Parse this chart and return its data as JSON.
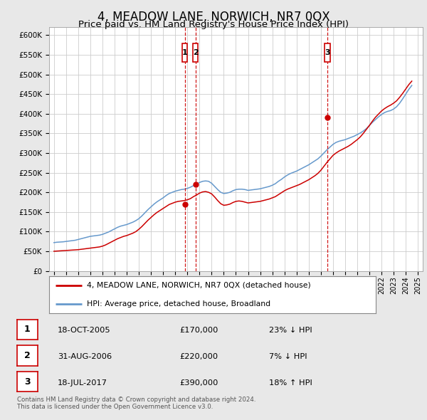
{
  "title": "4, MEADOW LANE, NORWICH, NR7 0QX",
  "subtitle": "Price paid vs. HM Land Registry's House Price Index (HPI)",
  "title_fontsize": 12,
  "subtitle_fontsize": 9.5,
  "ylim": [
    0,
    620000
  ],
  "yticks": [
    0,
    50000,
    100000,
    150000,
    200000,
    250000,
    300000,
    350000,
    400000,
    450000,
    500000,
    550000,
    600000
  ],
  "ytick_labels": [
    "£0",
    "£50K",
    "£100K",
    "£150K",
    "£200K",
    "£250K",
    "£300K",
    "£350K",
    "£400K",
    "£450K",
    "£500K",
    "£550K",
    "£600K"
  ],
  "xlim_start": 1994.6,
  "xlim_end": 2025.4,
  "background_color": "#e8e8e8",
  "plot_bg_color": "#ffffff",
  "grid_color": "#cccccc",
  "red_color": "#cc0000",
  "blue_color": "#6699cc",
  "sale_line_color": "#cc0000",
  "marker_box_color": "#cc0000",
  "sales": [
    {
      "num": 1,
      "year": 2005.8,
      "price": 170000,
      "date": "18-OCT-2005",
      "pct": "23%",
      "dir": "↓"
    },
    {
      "num": 2,
      "year": 2006.67,
      "price": 220000,
      "date": "31-AUG-2006",
      "pct": "7%",
      "dir": "↓"
    },
    {
      "num": 3,
      "year": 2017.54,
      "price": 390000,
      "date": "18-JUL-2017",
      "pct": "18%",
      "dir": "↑"
    }
  ],
  "legend_line1": "4, MEADOW LANE, NORWICH, NR7 0QX (detached house)",
  "legend_line2": "HPI: Average price, detached house, Broadland",
  "footer": "Contains HM Land Registry data © Crown copyright and database right 2024.\nThis data is licensed under the Open Government Licence v3.0.",
  "hpi_years": [
    1995,
    1995.25,
    1995.5,
    1995.75,
    1996,
    1996.25,
    1996.5,
    1996.75,
    1997,
    1997.25,
    1997.5,
    1997.75,
    1998,
    1998.25,
    1998.5,
    1998.75,
    1999,
    1999.25,
    1999.5,
    1999.75,
    2000,
    2000.25,
    2000.5,
    2000.75,
    2001,
    2001.25,
    2001.5,
    2001.75,
    2002,
    2002.25,
    2002.5,
    2002.75,
    2003,
    2003.25,
    2003.5,
    2003.75,
    2004,
    2004.25,
    2004.5,
    2004.75,
    2005,
    2005.25,
    2005.5,
    2005.75,
    2006,
    2006.25,
    2006.5,
    2006.75,
    2007,
    2007.25,
    2007.5,
    2007.75,
    2008,
    2008.25,
    2008.5,
    2008.75,
    2009,
    2009.25,
    2009.5,
    2009.75,
    2010,
    2010.25,
    2010.5,
    2010.75,
    2011,
    2011.25,
    2011.5,
    2011.75,
    2012,
    2012.25,
    2012.5,
    2012.75,
    2013,
    2013.25,
    2013.5,
    2013.75,
    2014,
    2014.25,
    2014.5,
    2014.75,
    2015,
    2015.25,
    2015.5,
    2015.75,
    2016,
    2016.25,
    2016.5,
    2016.75,
    2017,
    2017.25,
    2017.5,
    2017.75,
    2018,
    2018.25,
    2018.5,
    2018.75,
    2019,
    2019.25,
    2019.5,
    2019.75,
    2020,
    2020.25,
    2020.5,
    2020.75,
    2021,
    2021.25,
    2021.5,
    2021.75,
    2022,
    2022.25,
    2022.5,
    2022.75,
    2023,
    2023.25,
    2023.5,
    2023.75,
    2024,
    2024.25,
    2024.5
  ],
  "hpi_values": [
    72000,
    73000,
    73500,
    74000,
    75000,
    76000,
    77000,
    78000,
    80000,
    82000,
    84000,
    86000,
    88000,
    89000,
    90000,
    91000,
    93000,
    96000,
    99000,
    103000,
    107000,
    111000,
    114000,
    116000,
    118000,
    121000,
    124000,
    128000,
    133000,
    140000,
    148000,
    156000,
    163000,
    170000,
    176000,
    181000,
    186000,
    192000,
    197000,
    200000,
    203000,
    205000,
    207000,
    208000,
    210000,
    213000,
    217000,
    221000,
    225000,
    228000,
    229000,
    228000,
    223000,
    215000,
    207000,
    200000,
    197000,
    198000,
    200000,
    204000,
    207000,
    208000,
    208000,
    207000,
    205000,
    206000,
    207000,
    208000,
    209000,
    211000,
    213000,
    215000,
    218000,
    222000,
    228000,
    233000,
    239000,
    244000,
    248000,
    251000,
    254000,
    258000,
    262000,
    266000,
    270000,
    275000,
    280000,
    285000,
    292000,
    300000,
    308000,
    315000,
    322000,
    327000,
    330000,
    332000,
    334000,
    337000,
    340000,
    343000,
    347000,
    351000,
    356000,
    362000,
    370000,
    378000,
    385000,
    392000,
    398000,
    403000,
    406000,
    408000,
    412000,
    418000,
    427000,
    438000,
    450000,
    462000,
    472000
  ],
  "red_years": [
    1995,
    1995.25,
    1995.5,
    1995.75,
    1996,
    1996.25,
    1996.5,
    1996.75,
    1997,
    1997.25,
    1997.5,
    1997.75,
    1998,
    1998.25,
    1998.5,
    1998.75,
    1999,
    1999.25,
    1999.5,
    1999.75,
    2000,
    2000.25,
    2000.5,
    2000.75,
    2001,
    2001.25,
    2001.5,
    2001.75,
    2002,
    2002.25,
    2002.5,
    2002.75,
    2003,
    2003.25,
    2003.5,
    2003.75,
    2004,
    2004.25,
    2004.5,
    2004.75,
    2005,
    2005.25,
    2005.5,
    2005.75,
    2006,
    2006.25,
    2006.5,
    2006.75,
    2007,
    2007.25,
    2007.5,
    2007.75,
    2008,
    2008.25,
    2008.5,
    2008.75,
    2009,
    2009.25,
    2009.5,
    2009.75,
    2010,
    2010.25,
    2010.5,
    2010.75,
    2011,
    2011.25,
    2011.5,
    2011.75,
    2012,
    2012.25,
    2012.5,
    2012.75,
    2013,
    2013.25,
    2013.5,
    2013.75,
    2014,
    2014.25,
    2014.5,
    2014.75,
    2015,
    2015.25,
    2015.5,
    2015.75,
    2016,
    2016.25,
    2016.5,
    2016.75,
    2017,
    2017.25,
    2017.5,
    2017.75,
    2018,
    2018.25,
    2018.5,
    2018.75,
    2019,
    2019.25,
    2019.5,
    2019.75,
    2020,
    2020.25,
    2020.5,
    2020.75,
    2021,
    2021.25,
    2021.5,
    2021.75,
    2022,
    2022.25,
    2022.5,
    2022.75,
    2023,
    2023.25,
    2023.5,
    2023.75,
    2024,
    2024.25,
    2024.5
  ],
  "red_values": [
    50000,
    50500,
    51000,
    51500,
    52000,
    52500,
    53000,
    53500,
    54000,
    55000,
    56000,
    57000,
    58000,
    59000,
    60000,
    61000,
    63000,
    66000,
    70000,
    74000,
    78000,
    82000,
    85000,
    88000,
    90000,
    93000,
    96000,
    100000,
    106000,
    113000,
    121000,
    129000,
    136000,
    143000,
    149000,
    154000,
    159000,
    164000,
    169000,
    172000,
    175000,
    177000,
    178000,
    179000,
    181000,
    184000,
    189000,
    193000,
    198000,
    201000,
    202000,
    200000,
    196000,
    188000,
    179000,
    171000,
    167000,
    168000,
    170000,
    174000,
    177000,
    178000,
    177000,
    175000,
    173000,
    174000,
    175000,
    176000,
    177000,
    179000,
    181000,
    183000,
    186000,
    189000,
    194000,
    199000,
    204000,
    208000,
    211000,
    214000,
    217000,
    220000,
    224000,
    228000,
    232000,
    237000,
    242000,
    248000,
    256000,
    266000,
    276000,
    285000,
    294000,
    300000,
    305000,
    309000,
    313000,
    317000,
    322000,
    328000,
    334000,
    341000,
    350000,
    360000,
    370000,
    381000,
    391000,
    399000,
    407000,
    413000,
    418000,
    422000,
    427000,
    433000,
    442000,
    452000,
    463000,
    474000,
    483000
  ]
}
